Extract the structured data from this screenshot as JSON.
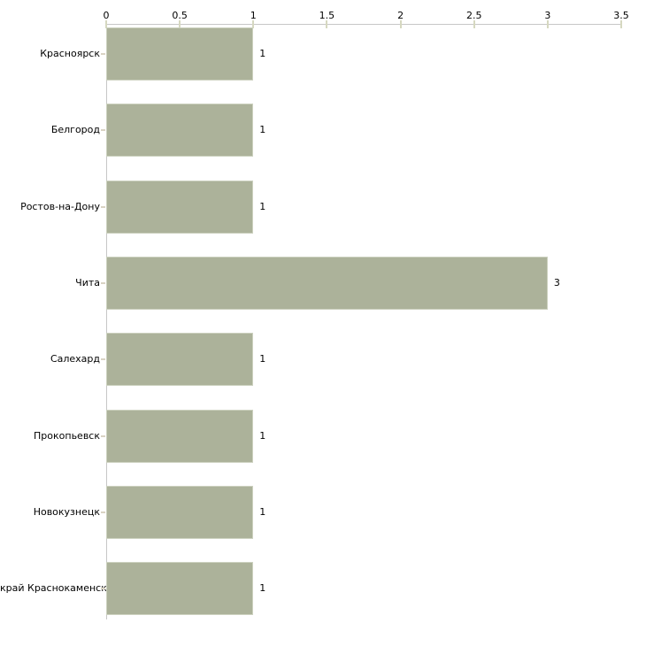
{
  "chart_data": {
    "type": "bar",
    "orientation": "horizontal",
    "title": "",
    "xlabel": "",
    "ylabel": "",
    "grid": false,
    "legend": "none",
    "x_axis": {
      "position": "top",
      "min": 0,
      "max": 3.5,
      "tick_values": [
        0,
        0.5,
        1,
        1.5,
        2,
        2.5,
        3,
        3.5
      ],
      "tick_labels": [
        "0",
        "0.5",
        "1",
        "1.5",
        "2",
        "2.5",
        "3",
        "3.5"
      ]
    },
    "categories": [
      "Красноярск",
      "Белгород",
      "Ростов-на-Дону",
      "Чита",
      "Салехард",
      "Прокопьевск",
      "Новокузнецк",
      "край Краснокаменск"
    ],
    "values": [
      1,
      1,
      1,
      3,
      1,
      1,
      1,
      1
    ],
    "value_labels": [
      "1",
      "1",
      "1",
      "3",
      "1",
      "1",
      "1",
      "1"
    ],
    "colors": {
      "bar_fill": "#acb29a",
      "bar_border": "#ccd1bf",
      "axis_line": "#c7c7c7",
      "x_tick_mark": "#d6d8c0",
      "category_tick_mark": "#d9d3c4",
      "text": "#000000",
      "background": "#ffffff"
    }
  }
}
